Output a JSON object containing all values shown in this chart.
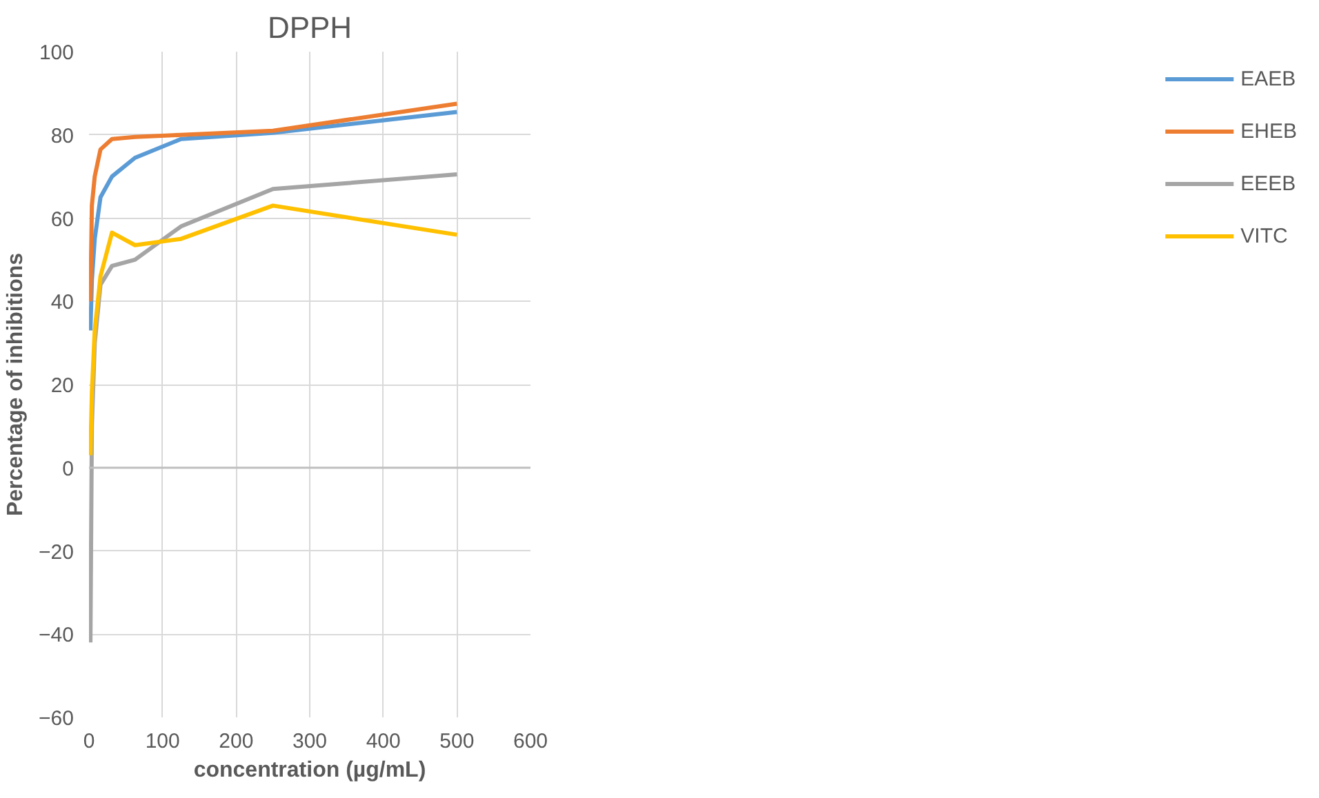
{
  "chart_data": {
    "type": "line",
    "title": "DPPH",
    "xlabel": "concentration (µg/mL)",
    "ylabel": "Percentage of inhibitions",
    "x": [
      1.95,
      3.9,
      7.8,
      15.6,
      31.25,
      62.5,
      125,
      250,
      500
    ],
    "series": [
      {
        "name": "EAEB",
        "color": "#5b9bd5",
        "values": [
          33,
          45,
          55,
          65,
          70,
          74.5,
          79,
          80.5,
          85.5
        ]
      },
      {
        "name": "EHEB",
        "color": "#ed7d31",
        "values": [
          40,
          63,
          70,
          76.5,
          79,
          79.5,
          80,
          81,
          87.5
        ]
      },
      {
        "name": "EEEB",
        "color": "#a5a5a5",
        "values": [
          -42,
          10,
          30,
          44,
          48.5,
          50,
          58,
          67,
          70.5
        ]
      },
      {
        "name": "VITC",
        "color": "#ffc000",
        "values": [
          3,
          18,
          33,
          46,
          56.5,
          53.5,
          55,
          63,
          56
        ]
      }
    ],
    "xlim": [
      0,
      600
    ],
    "xticks": [
      0,
      100,
      200,
      300,
      400,
      500,
      600
    ],
    "ylim": [
      -60,
      100
    ],
    "yticks": [
      -60,
      -40,
      -20,
      0,
      20,
      40,
      60,
      80,
      100
    ],
    "grid": true,
    "legend": "right",
    "marker": "none",
    "line_style": "solid"
  }
}
